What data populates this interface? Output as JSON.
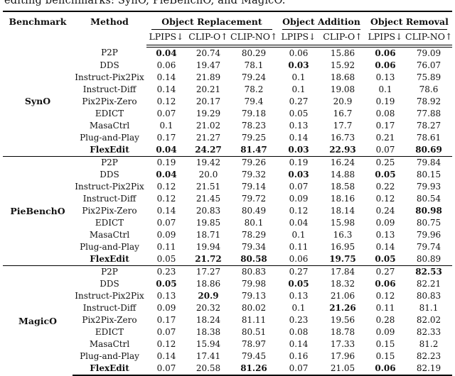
{
  "caption": "editing benchmarks: SynO, PieBenchO, and MagicO.",
  "table": {
    "benchmark_header": "Benchmark",
    "method_header": "Method",
    "groups": [
      {
        "label": "Object Replacement",
        "span": 3
      },
      {
        "label": "Object Addition",
        "span": 2
      },
      {
        "label": "Object Removal",
        "span": 2
      }
    ],
    "sub_headers": [
      "LPIPS↓",
      "CLIP-O↑",
      "CLIP-NO↑",
      "LPIPS↓",
      "CLIP-O↑",
      "LPIPS↓",
      "CLIP-NO↑"
    ],
    "sections": [
      {
        "benchmark": "SynO",
        "rows": [
          {
            "method": "P2P",
            "bold_method": 0,
            "values": [
              "0.04",
              "20.74",
              "80.29",
              "0.06",
              "15.86",
              "0.06",
              "79.09"
            ],
            "bold": [
              1,
              0,
              0,
              0,
              0,
              1,
              0
            ]
          },
          {
            "method": "DDS",
            "bold_method": 0,
            "values": [
              "0.06",
              "19.47",
              "78.1",
              "0.03",
              "15.92",
              "0.06",
              "76.07"
            ],
            "bold": [
              0,
              0,
              0,
              1,
              0,
              1,
              0
            ]
          },
          {
            "method": "Instruct-Pix2Pix",
            "bold_method": 0,
            "values": [
              "0.14",
              "21.89",
              "79.24",
              "0.1",
              "18.68",
              "0.13",
              "75.89"
            ],
            "bold": [
              0,
              0,
              0,
              0,
              0,
              0,
              0
            ]
          },
          {
            "method": "Instruct-Diff",
            "bold_method": 0,
            "values": [
              "0.14",
              "20.21",
              "78.2",
              "0.1",
              "19.08",
              "0.1",
              "78.6"
            ],
            "bold": [
              0,
              0,
              0,
              0,
              0,
              0,
              0
            ]
          },
          {
            "method": "Pix2Pix-Zero",
            "bold_method": 0,
            "values": [
              "0.12",
              "20.17",
              "79.4",
              "0.27",
              "20.9",
              "0.19",
              "78.92"
            ],
            "bold": [
              0,
              0,
              0,
              0,
              0,
              0,
              0
            ]
          },
          {
            "method": "EDICT",
            "bold_method": 0,
            "values": [
              "0.07",
              "19.29",
              "79.18",
              "0.05",
              "16.7",
              "0.08",
              "77.88"
            ],
            "bold": [
              0,
              0,
              0,
              0,
              0,
              0,
              0
            ]
          },
          {
            "method": "MasaCtrl",
            "bold_method": 0,
            "values": [
              "0.1",
              "21.02",
              "78.23",
              "0.13",
              "17.7",
              "0.17",
              "78.27"
            ],
            "bold": [
              0,
              0,
              0,
              0,
              0,
              0,
              0
            ]
          },
          {
            "method": "Plug-and-Play",
            "bold_method": 0,
            "values": [
              "0.17",
              "21.27",
              "79.25",
              "0.14",
              "16.73",
              "0.21",
              "78.61"
            ],
            "bold": [
              0,
              0,
              0,
              0,
              0,
              0,
              0
            ]
          },
          {
            "method": "FlexEdit",
            "bold_method": 1,
            "values": [
              "0.04",
              "24.27",
              "81.47",
              "0.03",
              "22.93",
              "0.07",
              "80.69"
            ],
            "bold": [
              1,
              1,
              1,
              1,
              1,
              0,
              1
            ]
          }
        ]
      },
      {
        "benchmark": "PieBenchO",
        "rows": [
          {
            "method": "P2P",
            "bold_method": 0,
            "values": [
              "0.19",
              "19.42",
              "79.26",
              "0.19",
              "16.24",
              "0.25",
              "79.84"
            ],
            "bold": [
              0,
              0,
              0,
              0,
              0,
              0,
              0
            ]
          },
          {
            "method": "DDS",
            "bold_method": 0,
            "values": [
              "0.04",
              "20.0",
              "79.32",
              "0.03",
              "14.88",
              "0.05",
              "80.15"
            ],
            "bold": [
              1,
              0,
              0,
              1,
              0,
              1,
              0
            ]
          },
          {
            "method": "Instruct-Pix2Pix",
            "bold_method": 0,
            "values": [
              "0.12",
              "21.51",
              "79.14",
              "0.07",
              "18.58",
              "0.22",
              "79.93"
            ],
            "bold": [
              0,
              0,
              0,
              0,
              0,
              0,
              0
            ]
          },
          {
            "method": "Instruct-Diff",
            "bold_method": 0,
            "values": [
              "0.12",
              "21.45",
              "79.72",
              "0.09",
              "18.16",
              "0.12",
              "80.54"
            ],
            "bold": [
              0,
              0,
              0,
              0,
              0,
              0,
              0
            ]
          },
          {
            "method": "Pix2Pix-Zero",
            "bold_method": 0,
            "values": [
              "0.14",
              "20.83",
              "80.49",
              "0.12",
              "18.14",
              "0.24",
              "80.98"
            ],
            "bold": [
              0,
              0,
              0,
              0,
              0,
              0,
              1
            ]
          },
          {
            "method": "EDICT",
            "bold_method": 0,
            "values": [
              "0.07",
              "19.85",
              "80.1",
              "0.04",
              "15.98",
              "0.09",
              "80.75"
            ],
            "bold": [
              0,
              0,
              0,
              0,
              0,
              0,
              0
            ]
          },
          {
            "method": "MasaCtrl",
            "bold_method": 0,
            "values": [
              "0.09",
              "18.71",
              "78.29",
              "0.1",
              "16.3",
              "0.13",
              "79.96"
            ],
            "bold": [
              0,
              0,
              0,
              0,
              0,
              0,
              0
            ]
          },
          {
            "method": "Plug-and-Play",
            "bold_method": 0,
            "values": [
              "0.11",
              "19.94",
              "79.34",
              "0.11",
              "16.95",
              "0.14",
              "79.74"
            ],
            "bold": [
              0,
              0,
              0,
              0,
              0,
              0,
              0
            ]
          },
          {
            "method": "FlexEdit",
            "bold_method": 1,
            "values": [
              "0.05",
              "21.72",
              "80.58",
              "0.06",
              "19.75",
              "0.05",
              "80.89"
            ],
            "bold": [
              0,
              1,
              1,
              0,
              1,
              1,
              0
            ]
          }
        ]
      },
      {
        "benchmark": "MagicO",
        "rows": [
          {
            "method": "P2P",
            "bold_method": 0,
            "values": [
              "0.23",
              "17.27",
              "80.83",
              "0.27",
              "17.84",
              "0.27",
              "82.53"
            ],
            "bold": [
              0,
              0,
              0,
              0,
              0,
              0,
              1
            ]
          },
          {
            "method": "DDS",
            "bold_method": 0,
            "values": [
              "0.05",
              "18.86",
              "79.98",
              "0.05",
              "18.32",
              "0.06",
              "82.21"
            ],
            "bold": [
              1,
              0,
              0,
              1,
              0,
              1,
              0
            ]
          },
          {
            "method": "Instruct-Pix2Pix",
            "bold_method": 0,
            "values": [
              "0.13",
              "20.9",
              "79.13",
              "0.13",
              "21.06",
              "0.12",
              "80.83"
            ],
            "bold": [
              0,
              1,
              0,
              0,
              0,
              0,
              0
            ]
          },
          {
            "method": "Instruct-Diff",
            "bold_method": 0,
            "values": [
              "0.09",
              "20.32",
              "80.02",
              "0.1",
              "21.26",
              "0.11",
              "81.1"
            ],
            "bold": [
              0,
              0,
              0,
              0,
              1,
              0,
              0
            ]
          },
          {
            "method": "Pix2Pix-Zero",
            "bold_method": 0,
            "values": [
              "0.17",
              "18.24",
              "81.11",
              "0.23",
              "19.56",
              "0.28",
              "82.02"
            ],
            "bold": [
              0,
              0,
              0,
              0,
              0,
              0,
              0
            ]
          },
          {
            "method": "EDICT",
            "bold_method": 0,
            "values": [
              "0.07",
              "18.38",
              "80.51",
              "0.08",
              "18.78",
              "0.09",
              "82.33"
            ],
            "bold": [
              0,
              0,
              0,
              0,
              0,
              0,
              0
            ]
          },
          {
            "method": "MasaCtrl",
            "bold_method": 0,
            "values": [
              "0.12",
              "15.94",
              "78.97",
              "0.14",
              "17.33",
              "0.15",
              "81.2"
            ],
            "bold": [
              0,
              0,
              0,
              0,
              0,
              0,
              0
            ]
          },
          {
            "method": "Plug-and-Play",
            "bold_method": 0,
            "values": [
              "0.14",
              "17.41",
              "79.45",
              "0.16",
              "17.96",
              "0.15",
              "82.23"
            ],
            "bold": [
              0,
              0,
              0,
              0,
              0,
              0,
              0
            ]
          },
          {
            "method": "FlexEdit",
            "bold_method": 1,
            "values": [
              "0.07",
              "20.58",
              "81.26",
              "0.07",
              "21.05",
              "0.06",
              "82.19"
            ],
            "bold": [
              0,
              0,
              1,
              0,
              0,
              1,
              0
            ]
          }
        ]
      }
    ]
  }
}
